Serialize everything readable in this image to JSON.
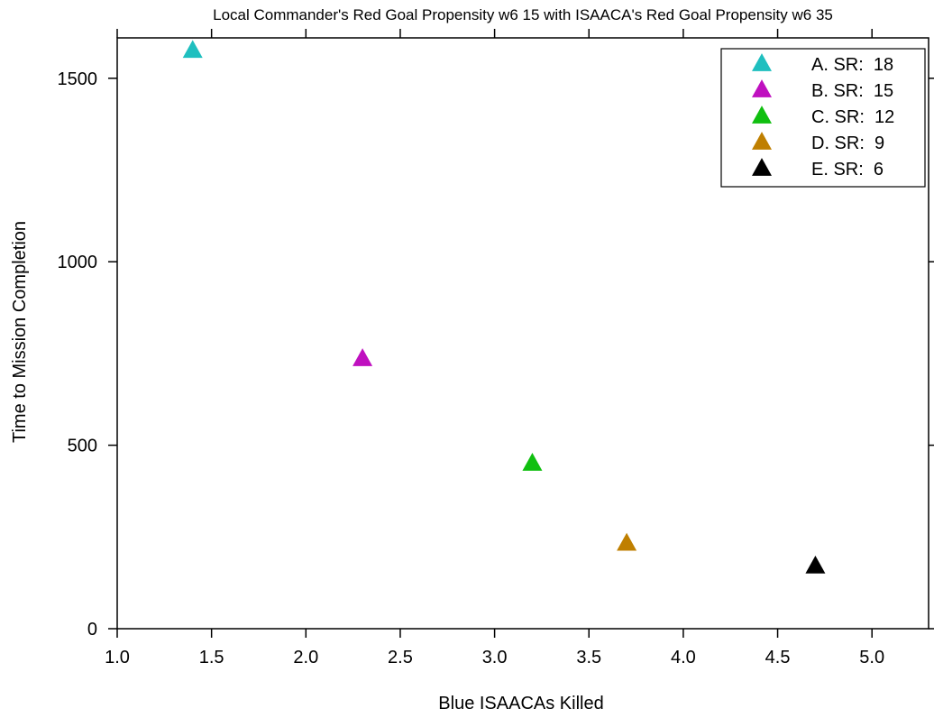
{
  "chart_data": {
    "type": "scatter",
    "title": "Local Commander's Red Goal Propensity w6 15 with ISAACA's Red Goal Propensity w6 35",
    "xlabel": "Blue ISAACAs Killed",
    "ylabel": "Time to Mission Completion",
    "xlim": [
      1.0,
      5.3
    ],
    "ylim": [
      0,
      1610
    ],
    "xticks": [
      1.0,
      1.5,
      2.0,
      2.5,
      3.0,
      3.5,
      4.0,
      4.5,
      5.0
    ],
    "xtick_labels": [
      "1.0",
      "1.5",
      "2.0",
      "2.5",
      "3.0",
      "3.5",
      "4.0",
      "4.5",
      "5.0"
    ],
    "yticks": [
      0,
      500,
      1000,
      1500
    ],
    "ytick_labels": [
      "0",
      "500",
      "1000",
      "1500"
    ],
    "grid": false,
    "marker": "triangle",
    "legend_position": "top-right",
    "series": [
      {
        "name": "A. SR:  18",
        "color": "#1fbfbf",
        "x": [
          1.4
        ],
        "y": [
          1575
        ]
      },
      {
        "name": "B. SR:  15",
        "color": "#bf10bf",
        "x": [
          2.3
        ],
        "y": [
          735
        ]
      },
      {
        "name": "C. SR:  12",
        "color": "#10bf10",
        "x": [
          3.2
        ],
        "y": [
          450
        ]
      },
      {
        "name": "D. SR:  9",
        "color": "#bf7f00",
        "x": [
          3.7
        ],
        "y": [
          232
        ]
      },
      {
        "name": "E. SR:  6",
        "color": "#000000",
        "x": [
          4.7
        ],
        "y": [
          170
        ]
      }
    ]
  }
}
